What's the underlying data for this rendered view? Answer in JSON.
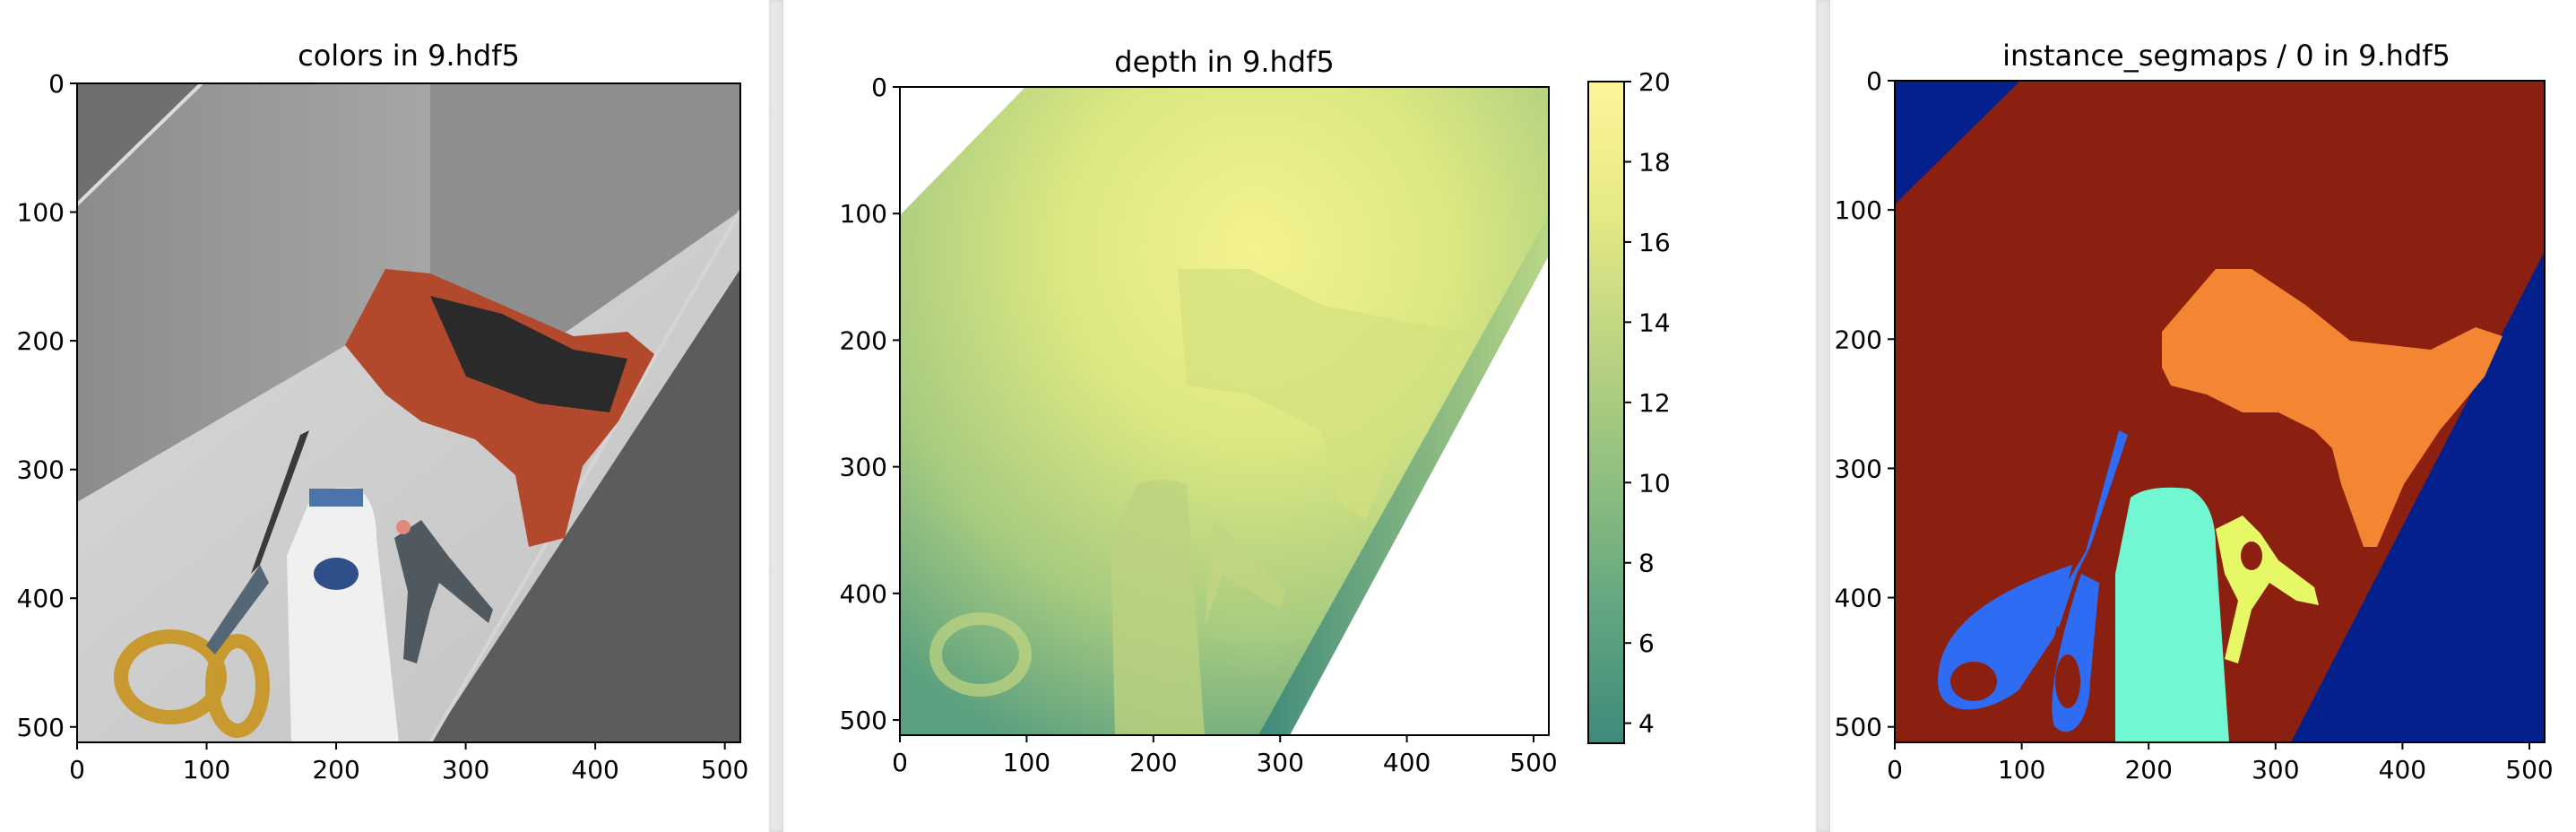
{
  "panels": [
    {
      "title": "colors in 9.hdf5",
      "x_ticks": [
        "0",
        "100",
        "200",
        "300",
        "400",
        "500"
      ],
      "y_ticks": [
        "0",
        "100",
        "200",
        "300",
        "400",
        "500"
      ]
    },
    {
      "title": "depth in 9.hdf5",
      "x_ticks": [
        "0",
        "100",
        "200",
        "300",
        "400",
        "500"
      ],
      "y_ticks": [
        "0",
        "100",
        "200",
        "300",
        "400",
        "500"
      ],
      "colorbar": {
        "ticks": [
          "4",
          "6",
          "8",
          "10",
          "12",
          "14",
          "16",
          "18",
          "20"
        ],
        "range": [
          3.5,
          20
        ],
        "colors": [
          "#3e8a7b",
          "#62a681",
          "#8fbf7f",
          "#bcd482",
          "#e6e985",
          "#fdf59a"
        ]
      }
    },
    {
      "title": "instance_segmaps / 0 in 9.hdf5",
      "x_ticks": [
        "0",
        "100",
        "200",
        "300",
        "400",
        "500"
      ],
      "y_ticks": [
        "0",
        "100",
        "200",
        "300",
        "400",
        "500"
      ],
      "segment_colors": {
        "background": "#8b1f10",
        "wall": "#04208c",
        "drill": "#f38533",
        "scissors": "#2d6cf3",
        "bottle": "#72f7d3",
        "clamp": "#e6f866"
      }
    }
  ]
}
